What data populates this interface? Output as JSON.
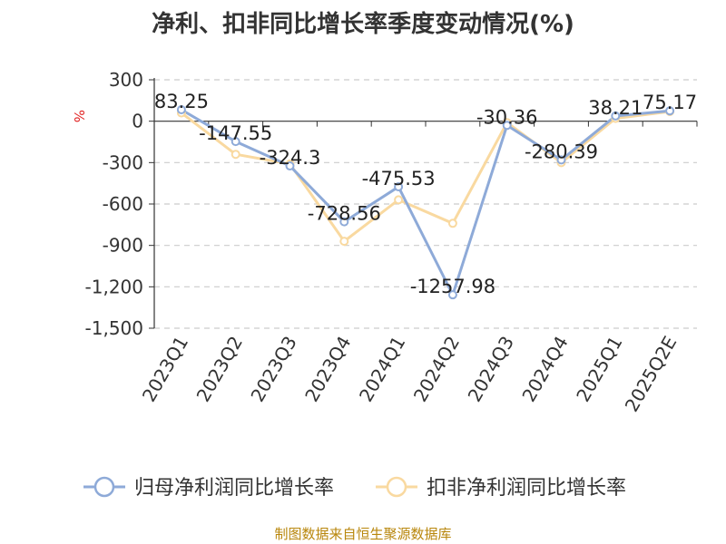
{
  "chart_data": {
    "type": "line",
    "title": "净利、扣非同比增长率季度变动情况(%)",
    "ylabel": "%",
    "categories": [
      "2023Q1",
      "2023Q2",
      "2023Q3",
      "2023Q4",
      "2024Q1",
      "2024Q2",
      "2024Q3",
      "2024Q4",
      "2025Q1",
      "2025Q2E"
    ],
    "yticks": [
      "300",
      "0",
      "-300",
      "-600",
      "-900",
      "-1,200",
      "-1,500"
    ],
    "ylim": [
      -1500,
      300
    ],
    "grid": true,
    "legend_position": "bottom",
    "series": [
      {
        "name": "归母净利润同比增长率",
        "color": "#8eaad8",
        "values": [
          83.25,
          -147.55,
          -324.3,
          -728.56,
          -475.53,
          -1257.98,
          -30.36,
          -280.39,
          38.21,
          75.17
        ],
        "labels": [
          "83.25",
          "-147.55",
          "-324.3",
          "-728.56",
          "-475.53",
          "-1257.98",
          "-30.36",
          "-280.39",
          "38.21",
          "75.17"
        ]
      },
      {
        "name": "扣非净利润同比增长率",
        "color": "#f9d9a0",
        "values": [
          60,
          -240,
          -310,
          -870,
          -570,
          -740,
          -10,
          -300,
          20,
          70
        ]
      }
    ]
  },
  "source": "制图数据来自恒生聚源数据库"
}
